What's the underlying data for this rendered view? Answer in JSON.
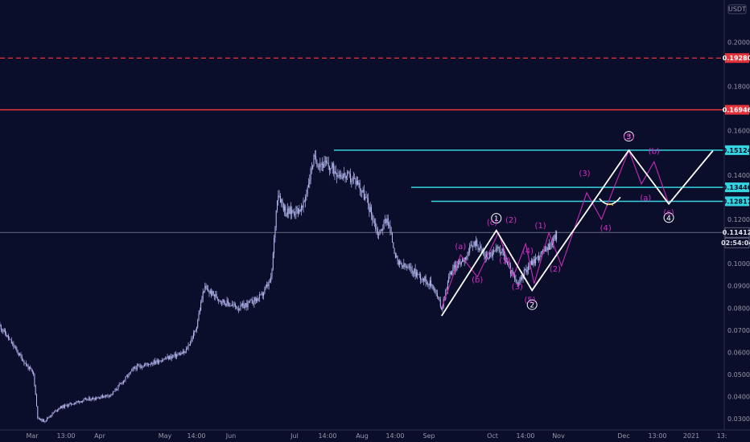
{
  "chart_data": {
    "type": "candlestick",
    "currency": "USDT",
    "time_labels": [
      "Mar",
      "13:00",
      "Apr",
      "May",
      "14:00",
      "Jun",
      "Jul",
      "14:00",
      "Aug",
      "14:00",
      "Sep",
      "Oct",
      "14:00",
      "Nov",
      "Dec",
      "13:00",
      "2021",
      "13:"
    ],
    "price_ticks": [
      "0.03000",
      "0.04000",
      "0.05000",
      "0.06000",
      "0.07000",
      "0.08000",
      "0.09000",
      "0.10000",
      "0.12000",
      "0.14000",
      "0.16000",
      "0.18000",
      "0.20000"
    ],
    "ylim": [
      0.025,
      0.215
    ],
    "price_path": [
      [
        "2020-02-27",
        0.072
      ],
      [
        "2020-03-05",
        0.062
      ],
      [
        "2020-03-10",
        0.055
      ],
      [
        "2020-03-14",
        0.05
      ],
      [
        "2020-03-16",
        0.03
      ],
      [
        "2020-03-19",
        0.029
      ],
      [
        "2020-03-26",
        0.035
      ],
      [
        "2020-04-05",
        0.038
      ],
      [
        "2020-04-20",
        0.041
      ],
      [
        "2020-05-01",
        0.053
      ],
      [
        "2020-05-15",
        0.057
      ],
      [
        "2020-05-25",
        0.06
      ],
      [
        "2020-05-30",
        0.07
      ],
      [
        "2020-06-03",
        0.089
      ],
      [
        "2020-06-12",
        0.083
      ],
      [
        "2020-06-20",
        0.08
      ],
      [
        "2020-06-30",
        0.085
      ],
      [
        "2020-07-05",
        0.093
      ],
      [
        "2020-07-08",
        0.133
      ],
      [
        "2020-07-12",
        0.123
      ],
      [
        "2020-07-20",
        0.125
      ],
      [
        "2020-07-25",
        0.147
      ],
      [
        "2020-08-01",
        0.144
      ],
      [
        "2020-08-08",
        0.14
      ],
      [
        "2020-08-15",
        0.137
      ],
      [
        "2020-08-20",
        0.127
      ],
      [
        "2020-08-25",
        0.113
      ],
      [
        "2020-08-29",
        0.121
      ],
      [
        "2020-09-03",
        0.1
      ],
      [
        "2020-09-10",
        0.097
      ],
      [
        "2020-09-20",
        0.09
      ],
      [
        "2020-09-24",
        0.08
      ],
      [
        "2020-09-28",
        0.096
      ],
      [
        "2020-10-05",
        0.103
      ],
      [
        "2020-10-10",
        0.11
      ],
      [
        "2020-10-15",
        0.103
      ],
      [
        "2020-10-22",
        0.107
      ],
      [
        "2020-10-30",
        0.09
      ],
      [
        "2020-11-04",
        0.099
      ],
      [
        "2020-11-10",
        0.104
      ],
      [
        "2020-11-15",
        0.109
      ],
      [
        "2020-11-18",
        0.114
      ]
    ],
    "horizontal_levels": [
      {
        "value": 0.1928,
        "label": "0.19280",
        "color": "#e5333c",
        "style": "dashed"
      },
      {
        "value": 0.16946,
        "label": "0.16946",
        "color": "#e5333c",
        "style": "solid"
      },
      {
        "value": 0.15124,
        "label": "0.15124",
        "color": "#34d5e0",
        "style": "solid"
      },
      {
        "value": 0.13446,
        "label": "0.13446",
        "color": "#34d5e0",
        "style": "solid"
      },
      {
        "value": 0.12817,
        "label": "0.12817",
        "color": "#34d5e0",
        "style": "solid"
      },
      {
        "value": 0.11412,
        "label": "0.11412",
        "color": "#9aa0b4",
        "style": "thin"
      }
    ],
    "current_price": "0.11412",
    "countdown": "02:54:04",
    "waves": {
      "major_path": [
        [
          "2020-09-24",
          0.0765
        ],
        [
          "2020-10-20",
          0.115
        ],
        [
          "2020-11-06",
          0.088
        ],
        [
          "2020-12-22",
          0.1512
        ],
        [
          "2021-01-10",
          0.127
        ],
        [
          "2021-01-31",
          0.151
        ]
      ],
      "minor_path": [
        [
          "2020-09-24",
          0.08
        ],
        [
          "2020-10-03",
          0.104
        ],
        [
          "2020-10-11",
          0.094
        ],
        [
          "2020-10-21",
          0.114
        ],
        [
          "2020-10-28",
          0.094
        ],
        [
          "2020-11-03",
          0.109
        ],
        [
          "2020-11-07",
          0.091
        ],
        [
          "2020-11-14",
          0.114
        ],
        [
          "2020-11-20",
          0.099
        ],
        [
          "2020-12-02",
          0.132
        ],
        [
          "2020-12-09",
          0.12
        ],
        [
          "2020-12-22",
          0.1512
        ],
        [
          "2020-12-28",
          0.136
        ],
        [
          "2021-01-03",
          0.146
        ],
        [
          "2021-01-10",
          0.127
        ]
      ],
      "major_labels": [
        {
          "text": "1",
          "date": "2020-10-20",
          "price": 0.1205
        },
        {
          "text": "2",
          "date": "2020-11-06",
          "price": 0.0815
        },
        {
          "text": "3",
          "date": "2020-12-22",
          "price": 0.1575
        },
        {
          "text": "4",
          "date": "2021-01-10",
          "price": 0.1208
        }
      ],
      "minor_labels": [
        {
          "text": "(a)",
          "date": "2020-10-03",
          "price": 0.1065
        },
        {
          "text": "(b)",
          "date": "2020-10-11",
          "price": 0.0915
        },
        {
          "text": "(c)",
          "date": "2020-10-18",
          "price": 0.1175
        },
        {
          "text": "(2)",
          "date": "2020-10-27",
          "price": 0.1185
        },
        {
          "text": "(1)",
          "date": "2020-10-24",
          "price": 0.1003
        },
        {
          "text": "(3)",
          "date": "2020-10-30",
          "price": 0.0885
        },
        {
          "text": "(4)",
          "date": "2020-11-04",
          "price": 0.1045
        },
        {
          "text": "(5)",
          "date": "2020-11-05",
          "price": 0.0825
        },
        {
          "text": "(1)",
          "date": "2020-11-10",
          "price": 0.116
        },
        {
          "text": "(2)",
          "date": "2020-11-17",
          "price": 0.0965
        },
        {
          "text": "(3)",
          "date": "2020-12-01",
          "price": 0.1395
        },
        {
          "text": "(4)",
          "date": "2020-12-11",
          "price": 0.115
        },
        {
          "text": "(5)",
          "date": "2020-12-22",
          "price": 0.156
        },
        {
          "text": "(a)",
          "date": "2020-12-30",
          "price": 0.1285
        },
        {
          "text": "(b)",
          "date": "2021-01-03",
          "price": 0.1495
        },
        {
          "text": "(c)",
          "date": "2021-01-10",
          "price": 0.122
        }
      ],
      "pattern_arc": [
        [
          "2020-12-08",
          0.1294
        ],
        [
          "2020-12-13",
          0.126
        ],
        [
          "2020-12-18",
          0.13
        ]
      ]
    }
  },
  "colors": {
    "background": "#0b0e2a",
    "candles": "#b7bcf5",
    "major_wave": "#ffffff",
    "minor_wave": "#c92ab8",
    "wave_label": "#d62ac8",
    "axis_text": "#9598a8",
    "red_level": "#e5333c",
    "cyan_level": "#34d5e0"
  }
}
